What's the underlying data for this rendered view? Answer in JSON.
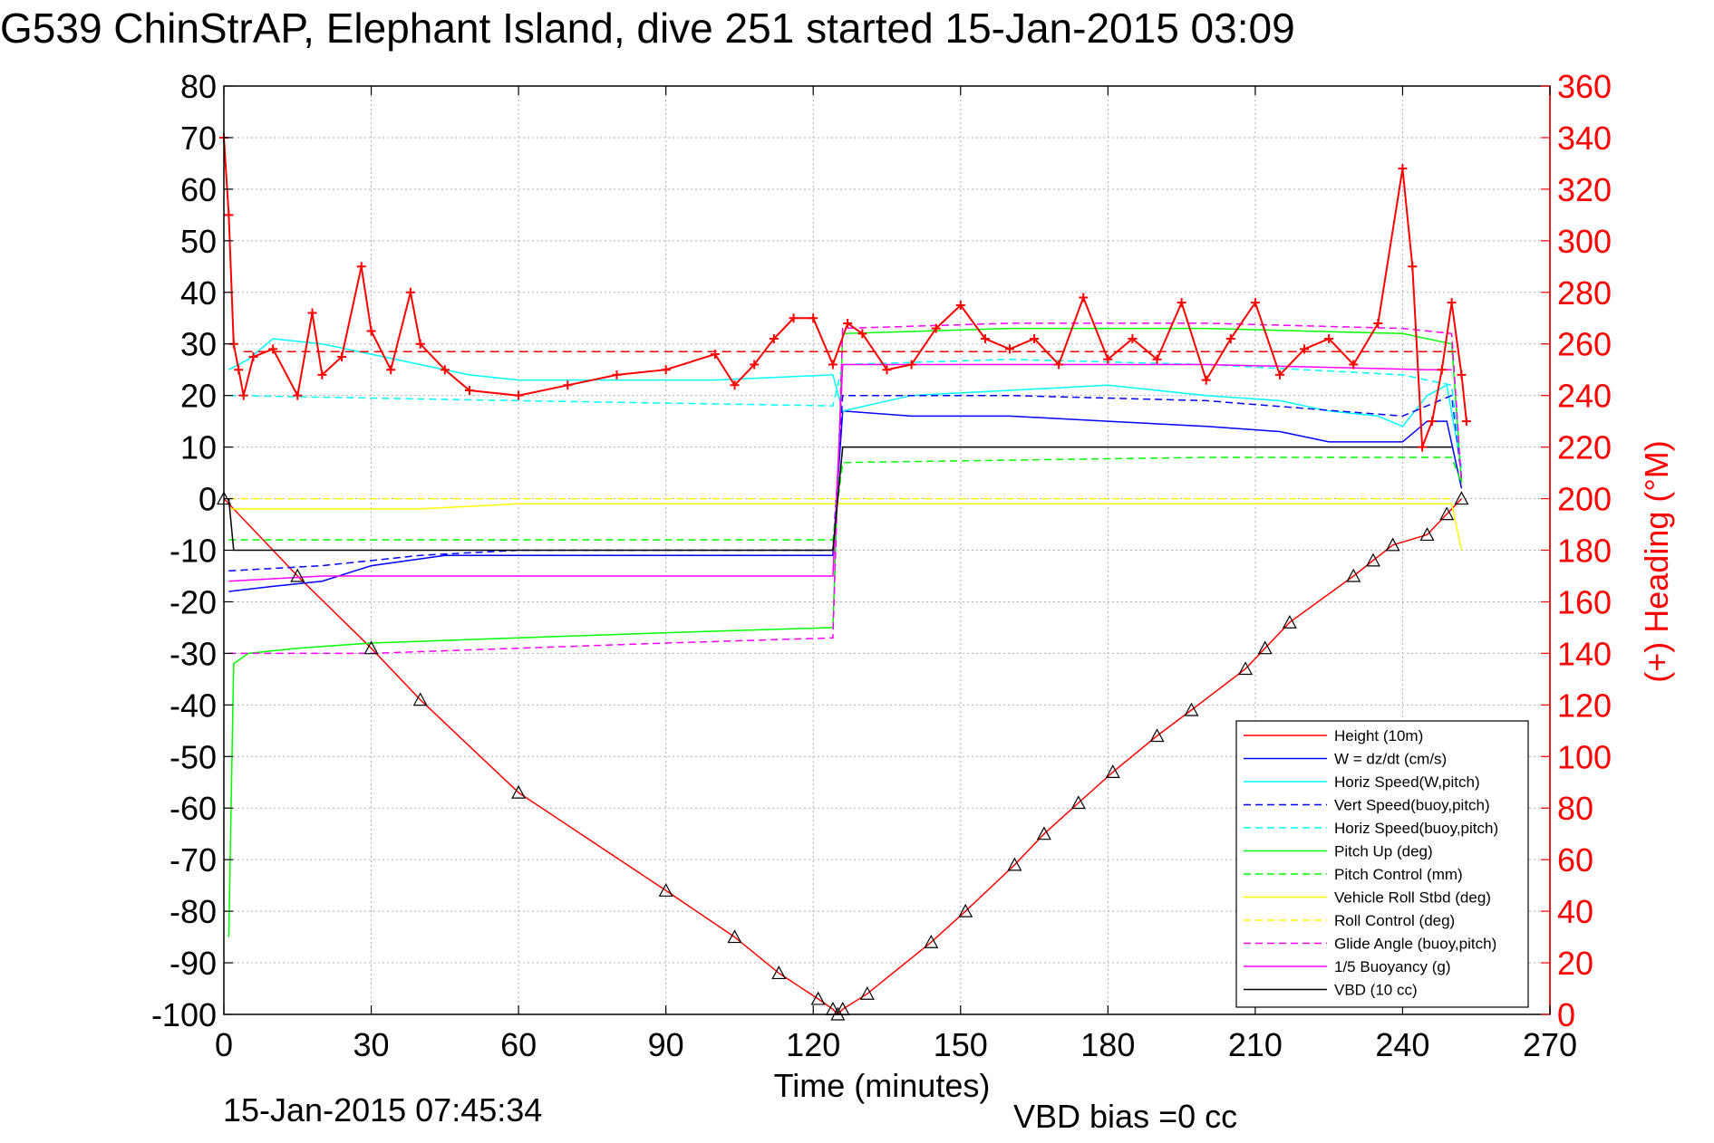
{
  "chart_data": {
    "type": "line",
    "title": "G539 ChinStrAP, Elephant Island, dive 251 started 15-Jan-2015 03:09",
    "xlabel": "Time (minutes)",
    "ylabel": "",
    "y2label": "(+) Heading (°M)",
    "xlim": [
      0,
      270
    ],
    "ylim": [
      -100,
      80
    ],
    "y2lim": [
      0,
      360
    ],
    "xticks": [
      "0",
      "30",
      "60",
      "90",
      "120",
      "150",
      "180",
      "210",
      "240",
      "270"
    ],
    "yticks": [
      "80",
      "70",
      "60",
      "50",
      "40",
      "30",
      "20",
      "10",
      "0",
      "-10",
      "-20",
      "-30",
      "-40",
      "-50",
      "-60",
      "-70",
      "-80",
      "-90",
      "-100"
    ],
    "y2ticks": [
      "360",
      "340",
      "320",
      "300",
      "280",
      "260",
      "240",
      "220",
      "200",
      "180",
      "160",
      "140",
      "120",
      "100",
      "80",
      "60",
      "40",
      "20",
      "0"
    ],
    "grid": true,
    "legend_position": "bottom-right",
    "series": [
      {
        "name": "Height (10m)",
        "color": "#ff0000",
        "dash": "solid",
        "x": [
          0,
          15,
          30,
          40,
          60,
          90,
          104,
          113,
          121,
          124,
          125,
          126,
          131,
          144,
          151,
          161,
          167,
          174,
          181,
          190,
          197,
          208,
          212,
          217,
          230,
          234,
          238,
          245,
          249,
          252
        ],
        "y": [
          0,
          -15,
          -29,
          -39,
          -57,
          -76,
          -85,
          -92,
          -97,
          -99,
          -100,
          -99,
          -96,
          -86,
          -80,
          -71,
          -65,
          -59,
          -53,
          -46,
          -41,
          -33,
          -29,
          -24,
          -15,
          -12,
          -9,
          -7,
          -3,
          0
        ]
      },
      {
        "name": "W = dz/dt (cm/s)",
        "color": "#0000ff",
        "dash": "solid",
        "x": [
          1,
          10,
          20,
          30,
          45,
          60,
          80,
          100,
          124,
          126,
          140,
          160,
          180,
          200,
          215,
          225,
          235,
          240,
          245,
          249,
          252
        ],
        "y": [
          -18,
          -17,
          -16,
          -13,
          -11,
          -11,
          -11,
          -11,
          -11,
          17,
          16,
          16,
          15,
          14,
          13,
          11,
          11,
          11,
          15,
          15,
          2
        ]
      },
      {
        "name": "Horiz Speed(W,pitch)",
        "color": "#00ffff",
        "dash": "solid",
        "x": [
          1,
          5,
          10,
          20,
          30,
          40,
          50,
          60,
          80,
          100,
          124,
          126,
          140,
          160,
          180,
          200,
          215,
          225,
          235,
          240,
          245,
          249,
          252
        ],
        "y": [
          25,
          27,
          31,
          30,
          28,
          26,
          24,
          23,
          23,
          23,
          24,
          17,
          20,
          21,
          22,
          20,
          19,
          17,
          16,
          14,
          20,
          22,
          6
        ]
      },
      {
        "name": "Vert Speed(buoy,pitch)",
        "color": "#0000ff",
        "dash": "dash",
        "x": [
          1,
          20,
          40,
          60,
          124,
          126,
          160,
          200,
          240,
          250,
          252
        ],
        "y": [
          -14,
          -13,
          -11,
          -10,
          -10,
          20,
          20,
          19,
          16,
          20,
          4
        ]
      },
      {
        "name": "Horiz Speed(buoy,pitch)",
        "color": "#00ffff",
        "dash": "dash",
        "x": [
          1,
          60,
          124,
          126,
          160,
          200,
          240,
          250,
          252
        ],
        "y": [
          20,
          19,
          18,
          26,
          27,
          26,
          24,
          22,
          5
        ]
      },
      {
        "name": "Pitch Up (deg)",
        "color": "#00ff00",
        "dash": "solid",
        "x": [
          1,
          2,
          5,
          15,
          30,
          60,
          90,
          124,
          126,
          160,
          200,
          240,
          250,
          252
        ],
        "y": [
          -85,
          -32,
          -30,
          -29,
          -28,
          -27,
          -26,
          -25,
          32,
          33,
          33,
          32,
          30,
          3
        ]
      },
      {
        "name": "Pitch Control (mm)",
        "color": "#00ff00",
        "dash": "dash",
        "x": [
          1,
          60,
          124,
          126,
          200,
          250,
          252
        ],
        "y": [
          -8,
          -8,
          -8,
          7,
          8,
          8,
          3
        ]
      },
      {
        "name": "Vehicle Roll Stbd (deg)",
        "color": "#ffff00",
        "dash": "solid",
        "x": [
          1,
          20,
          40,
          60,
          90,
          120,
          125,
          160,
          200,
          240,
          250,
          252
        ],
        "y": [
          -2,
          -2,
          -2,
          -1,
          -1,
          -1,
          -1,
          -1,
          -1,
          -1,
          -1,
          -10
        ]
      },
      {
        "name": "Roll Control (deg)",
        "color": "#ffff00",
        "dash": "dash",
        "x": [
          1,
          60,
          124,
          126,
          200,
          250
        ],
        "y": [
          0,
          0,
          0,
          0,
          0,
          0
        ]
      },
      {
        "name": "Glide Angle (buoy,pitch)",
        "color": "#ff00ff",
        "dash": "dash",
        "x": [
          1,
          30,
          60,
          90,
          124,
          126,
          160,
          200,
          240,
          250,
          252
        ],
        "y": [
          -30,
          -30,
          -29,
          -28,
          -27,
          33,
          34,
          34,
          33,
          32,
          3
        ]
      },
      {
        "name": "1/5 Buoyancy (g)",
        "color": "#ff00ff",
        "dash": "solid",
        "x": [
          1,
          20,
          40,
          60,
          124,
          126,
          200,
          245,
          250
        ],
        "y": [
          -16,
          -15,
          -15,
          -15,
          -15,
          26,
          26,
          25,
          25
        ]
      },
      {
        "name": "VBD (10 cc)",
        "color": "#000000",
        "dash": "solid",
        "x": [
          1,
          2,
          124,
          126,
          245,
          250
        ],
        "y": [
          0,
          -10,
          -10,
          10,
          10,
          10
        ]
      }
    ],
    "heading_series": {
      "axis": "right",
      "marker": "+",
      "color": "#ff0000",
      "x": [
        0,
        1,
        2,
        3,
        4,
        6,
        10,
        15,
        18,
        20,
        24,
        28,
        30,
        34,
        38,
        40,
        45,
        50,
        60,
        70,
        80,
        90,
        100,
        104,
        108,
        112,
        116,
        120,
        124,
        127,
        130,
        135,
        140,
        145,
        150,
        155,
        160,
        165,
        170,
        175,
        180,
        185,
        190,
        195,
        200,
        205,
        210,
        215,
        220,
        225,
        230,
        235,
        240,
        242,
        244,
        246,
        248,
        250,
        252,
        253
      ],
      "y": [
        340,
        310,
        260,
        250,
        240,
        255,
        258,
        240,
        272,
        248,
        255,
        290,
        265,
        250,
        280,
        260,
        250,
        242,
        240,
        244,
        248,
        250,
        256,
        244,
        252,
        262,
        270,
        270,
        252,
        268,
        264,
        250,
        252,
        266,
        275,
        262,
        258,
        262,
        252,
        278,
        254,
        262,
        254,
        276,
        246,
        262,
        276,
        248,
        258,
        262,
        252,
        268,
        328,
        290,
        220,
        230,
        250,
        276,
        248,
        230
      ]
    },
    "heading_reference": {
      "value": 257,
      "color": "#ff0000",
      "dash": "dash"
    }
  },
  "footer": {
    "timestamp": "15-Jan-2015 07:45:34",
    "vbd_bias": "VBD bias =0 cc"
  }
}
